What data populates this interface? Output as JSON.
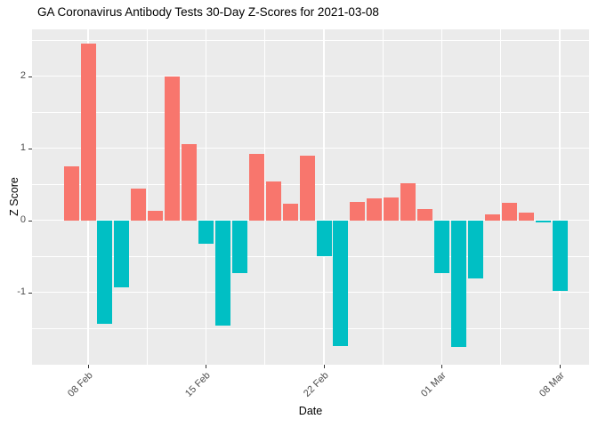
{
  "title": "GA Coronavirus Antibody Tests 30-Day Z-Scores for 2021-03-08",
  "chart_data": {
    "type": "bar",
    "title": "GA Coronavirus Antibody Tests 30-Day Z-Scores for 2021-03-08",
    "xlabel": "Date",
    "ylabel": "Z Score",
    "legend": "none",
    "grid": "on",
    "panel_bg": "#EBEBEB",
    "grid_color": "#FFFFFF",
    "positive_color": "#F8766D",
    "negative_color": "#00BFC4",
    "ylim": [
      -2.0,
      2.65
    ],
    "y_major_ticks": [
      -1,
      0,
      1,
      2
    ],
    "y_minor_ticks": [
      -1.5,
      -0.5,
      0.5,
      1.5,
      2.5
    ],
    "x_tick_labels": [
      "08 Feb",
      "15 Feb",
      "22 Feb",
      "01 Mar",
      "08 Mar"
    ],
    "x_tick_indices": [
      1,
      8,
      15,
      22,
      29
    ],
    "x": [
      "2021-02-07",
      "2021-02-08",
      "2021-02-09",
      "2021-02-10",
      "2021-02-11",
      "2021-02-12",
      "2021-02-13",
      "2021-02-14",
      "2021-02-15",
      "2021-02-16",
      "2021-02-17",
      "2021-02-18",
      "2021-02-19",
      "2021-02-20",
      "2021-02-21",
      "2021-02-22",
      "2021-02-23",
      "2021-02-24",
      "2021-02-25",
      "2021-02-26",
      "2021-02-27",
      "2021-02-28",
      "2021-03-01",
      "2021-03-02",
      "2021-03-03",
      "2021-03-04",
      "2021-03-05",
      "2021-03-06",
      "2021-03-07",
      "2021-03-08"
    ],
    "values": [
      0.75,
      2.45,
      -1.44,
      -0.93,
      0.44,
      0.13,
      2.0,
      1.06,
      -0.33,
      -1.46,
      -0.73,
      0.92,
      0.54,
      0.23,
      0.9,
      -0.5,
      -1.74,
      0.26,
      0.31,
      0.32,
      0.52,
      0.16,
      -0.73,
      -1.76,
      -0.8,
      0.08,
      0.24,
      0.11,
      -0.03,
      -0.98
    ]
  }
}
